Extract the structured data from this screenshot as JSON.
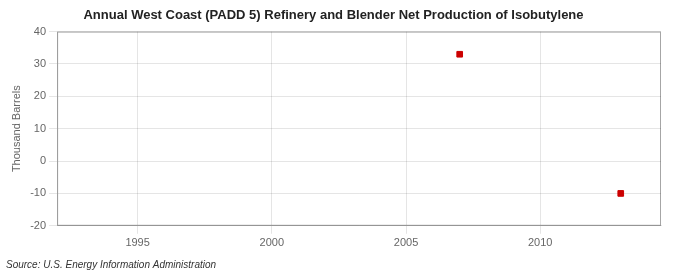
{
  "chart_data": {
    "type": "scatter",
    "title": "Annual West Coast (PADD 5) Refinery and Blender Net Production of Isobutylene",
    "ylabel": "Thousand Barrels",
    "annotations": [
      "Source: U.S. Energy Information Administration"
    ],
    "x": [
      2007,
      2013
    ],
    "values": [
      33,
      -10
    ],
    "color": "#cc0000",
    "marker": "square",
    "xlim": [
      1992,
      2014.5
    ],
    "ylim": [
      -20,
      40
    ],
    "xticks": [
      1995,
      2000,
      2005,
      2010
    ],
    "yticks": [
      -20,
      -10,
      0,
      10,
      20,
      30,
      40
    ],
    "grid": true
  }
}
